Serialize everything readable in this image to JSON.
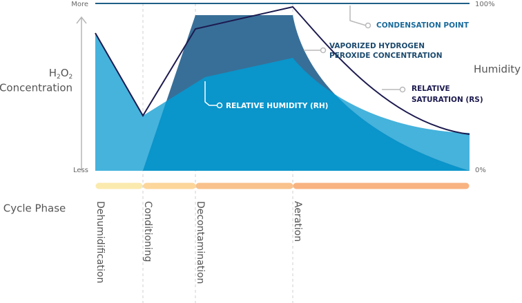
{
  "axis": {
    "top_left": "More",
    "bottom_left": "Less",
    "top_right": "100%",
    "bottom_right": "0%",
    "left_title_formula": [
      "H",
      "2",
      "O",
      "2"
    ],
    "left_title": "Concentration",
    "right_title": "Humidity"
  },
  "annotations": {
    "condensation": "CONDENSATION POINT",
    "vhp": [
      "VAPORIZED HYDROGEN",
      "PEROXIDE CONCENTRATION"
    ],
    "rh": "RELATIVE HUMIDITY (RH)",
    "rs": [
      "RELATIVE",
      "SATURATION (RS)"
    ]
  },
  "phases": {
    "title": "Cycle Phase",
    "items": [
      "Dehumidification",
      "Conditioning",
      "Decontamination",
      "Aeration"
    ]
  }
}
